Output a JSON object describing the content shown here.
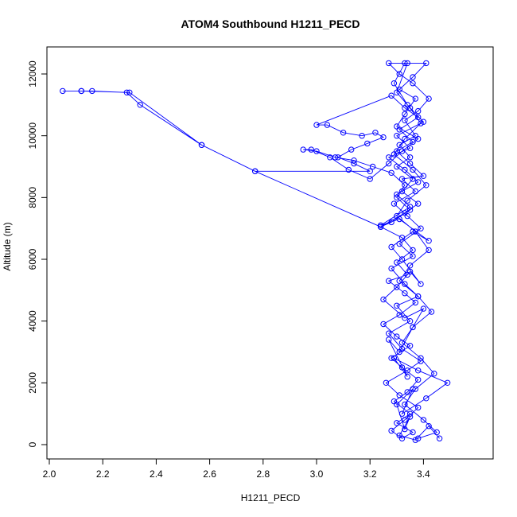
{
  "chart_data": {
    "type": "scatter",
    "title": "ATOM4 Southbound H1211_PECD",
    "xlabel": "H1211_PECD",
    "ylabel": "Altitude (m)",
    "xlim": [
      2.0,
      3.5
    ],
    "ylim": [
      0,
      12000
    ],
    "x_ticks": [
      "2.0",
      "2.2",
      "2.4",
      "2.6",
      "2.8",
      "3.0",
      "3.2",
      "3.4"
    ],
    "y_ticks": [
      "0",
      "2000",
      "4000",
      "6000",
      "8000",
      "10000",
      "12000"
    ],
    "grid": false,
    "legend": "none",
    "series": [
      {
        "color": "#0000ff",
        "marker": "open-circle",
        "line": true,
        "points": [
          [
            3.46,
            200
          ],
          [
            3.42,
            600
          ],
          [
            3.37,
            150
          ],
          [
            3.31,
            300
          ],
          [
            3.35,
            900
          ],
          [
            3.33,
            500
          ],
          [
            3.3,
            1300
          ],
          [
            3.36,
            1800
          ],
          [
            3.32,
            1000
          ],
          [
            3.41,
            1500
          ],
          [
            3.49,
            2000
          ],
          [
            3.38,
            2400
          ],
          [
            3.29,
            2800
          ],
          [
            3.34,
            2200
          ],
          [
            3.27,
            3400
          ],
          [
            3.31,
            3000
          ],
          [
            3.36,
            3800
          ],
          [
            3.4,
            4400
          ],
          [
            3.33,
            4100
          ],
          [
            3.25,
            4700
          ],
          [
            3.3,
            5100
          ],
          [
            3.35,
            5600
          ],
          [
            3.39,
            5200
          ],
          [
            3.32,
            6000
          ],
          [
            3.28,
            6400
          ],
          [
            3.36,
            6900
          ],
          [
            3.42,
            6600
          ],
          [
            3.31,
            7300
          ],
          [
            3.24,
            7100
          ],
          [
            3.35,
            7700
          ],
          [
            3.3,
            8100
          ],
          [
            3.38,
            8500
          ],
          [
            3.33,
            8900
          ],
          [
            3.27,
            9300
          ],
          [
            3.35,
            9600
          ],
          [
            3.3,
            10000
          ],
          [
            3.4,
            10450
          ],
          [
            3.34,
            11000
          ],
          [
            3.29,
            11700
          ],
          [
            3.33,
            12350
          ],
          [
            3.41,
            12350
          ],
          [
            3.36,
            11900
          ],
          [
            3.31,
            11500
          ],
          [
            3.37,
            11200
          ],
          [
            3.33,
            10700
          ],
          [
            3.3,
            10300
          ],
          [
            3.38,
            9900
          ],
          [
            3.32,
            9500
          ],
          [
            3.27,
            9100
          ],
          [
            3.2,
            8600
          ],
          [
            3.12,
            8900
          ],
          [
            3.05,
            9300
          ],
          [
            2.98,
            9550
          ],
          [
            2.95,
            9550
          ],
          [
            3.0,
            9500
          ],
          [
            3.07,
            9300
          ],
          [
            3.14,
            9200
          ],
          [
            3.21,
            9000
          ],
          [
            3.28,
            8800
          ],
          [
            3.33,
            8400
          ],
          [
            3.3,
            8000
          ],
          [
            3.35,
            7600
          ],
          [
            3.28,
            7200
          ],
          [
            3.24,
            7050
          ],
          [
            3.32,
            6700
          ],
          [
            3.36,
            6300
          ],
          [
            3.3,
            5900
          ],
          [
            3.34,
            5500
          ],
          [
            3.27,
            5300
          ],
          [
            3.33,
            4900
          ],
          [
            3.37,
            4600
          ],
          [
            3.31,
            4200
          ],
          [
            3.25,
            3900
          ],
          [
            3.3,
            3500
          ],
          [
            3.35,
            3200
          ],
          [
            3.28,
            2800
          ],
          [
            3.32,
            2500
          ],
          [
            3.38,
            2100
          ],
          [
            3.34,
            1700
          ],
          [
            3.29,
            1400
          ],
          [
            3.35,
            1000
          ],
          [
            3.3,
            700
          ],
          [
            3.36,
            400
          ],
          [
            3.32,
            200
          ],
          [
            3.28,
            450
          ],
          [
            3.33,
            800
          ],
          [
            3.38,
            1200
          ],
          [
            3.31,
            1600
          ],
          [
            3.26,
            2000
          ],
          [
            3.34,
            2400
          ],
          [
            3.39,
            2700
          ],
          [
            3.32,
            3100
          ],
          [
            3.27,
            3600
          ],
          [
            3.35,
            4000
          ],
          [
            3.3,
            4500
          ],
          [
            3.38,
            4800
          ],
          [
            3.33,
            5200
          ],
          [
            3.28,
            5700
          ],
          [
            3.36,
            6100
          ],
          [
            3.31,
            6500
          ],
          [
            3.39,
            7000
          ],
          [
            3.34,
            7400
          ],
          [
            3.29,
            7800
          ],
          [
            3.37,
            8200
          ],
          [
            3.32,
            8600
          ],
          [
            3.4,
            8700
          ],
          [
            3.35,
            9100
          ],
          [
            3.3,
            9500
          ],
          [
            3.36,
            9800
          ],
          [
            3.31,
            10200
          ],
          [
            3.38,
            10600
          ],
          [
            3.33,
            10900
          ],
          [
            3.28,
            11300
          ],
          [
            3.0,
            10350
          ],
          [
            3.04,
            10350
          ],
          [
            3.1,
            10100
          ],
          [
            3.17,
            10000
          ],
          [
            3.22,
            10100
          ],
          [
            3.25,
            9950
          ],
          [
            3.19,
            9750
          ],
          [
            3.13,
            9550
          ],
          [
            3.08,
            9300
          ],
          [
            3.14,
            9100
          ],
          [
            3.2,
            8850
          ],
          [
            2.77,
            8850
          ],
          [
            2.57,
            9700
          ],
          [
            2.34,
            11000
          ],
          [
            2.29,
            11400
          ],
          [
            2.16,
            11450
          ],
          [
            2.12,
            11450
          ],
          [
            2.05,
            11450
          ],
          [
            2.12,
            11450
          ],
          [
            2.3,
            11400
          ],
          [
            2.57,
            9700
          ],
          [
            2.77,
            8850
          ],
          [
            3.24,
            7050
          ],
          [
            3.33,
            7500
          ],
          [
            3.38,
            7800
          ],
          [
            3.32,
            8200
          ],
          [
            3.36,
            8600
          ],
          [
            3.3,
            9000
          ],
          [
            3.35,
            9300
          ],
          [
            3.31,
            9700
          ],
          [
            3.37,
            10000
          ],
          [
            3.33,
            10500
          ],
          [
            3.38,
            10800
          ],
          [
            3.42,
            11200
          ],
          [
            3.36,
            11700
          ],
          [
            3.31,
            12000
          ],
          [
            3.27,
            12350
          ],
          [
            3.34,
            12350
          ],
          [
            3.3,
            11400
          ],
          [
            3.35,
            10900
          ],
          [
            3.39,
            10400
          ],
          [
            3.33,
            9900
          ],
          [
            3.29,
            9400
          ],
          [
            3.36,
            8900
          ],
          [
            3.41,
            8400
          ],
          [
            3.34,
            7900
          ],
          [
            3.3,
            7400
          ],
          [
            3.37,
            6900
          ],
          [
            3.42,
            6300
          ],
          [
            3.35,
            5800
          ],
          [
            3.31,
            5300
          ],
          [
            3.38,
            4800
          ],
          [
            3.43,
            4300
          ],
          [
            3.36,
            3800
          ],
          [
            3.32,
            3300
          ],
          [
            3.39,
            2800
          ],
          [
            3.44,
            2300
          ],
          [
            3.37,
            1800
          ],
          [
            3.33,
            1300
          ],
          [
            3.4,
            800
          ],
          [
            3.45,
            400
          ],
          [
            3.38,
            200
          ]
        ]
      }
    ]
  }
}
